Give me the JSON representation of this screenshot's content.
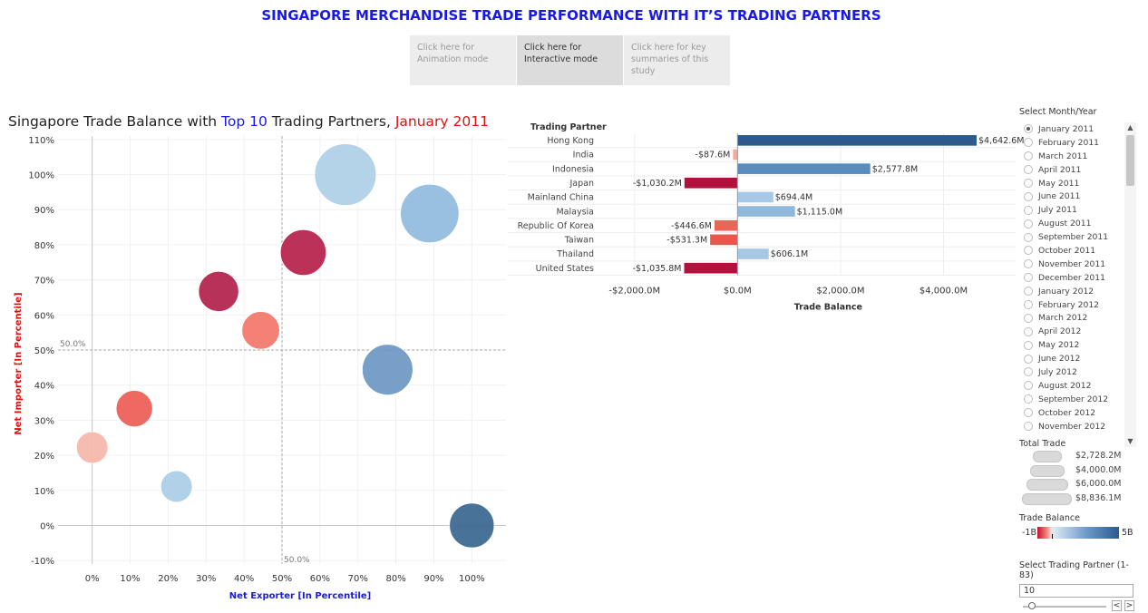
{
  "header": {
    "title": "SINGAPORE MERCHANDISE TRADE PERFORMANCE WITH IT’S TRADING PARTNERS",
    "nav": [
      {
        "label": "Click here for Animation mode",
        "active": false
      },
      {
        "label": "Click here for Interactive mode",
        "active": true
      },
      {
        "label": "Click here for key summaries of this study",
        "active": false
      }
    ]
  },
  "scatter": {
    "title_prefix": "Singapore Trade Balance with ",
    "title_top": "Top 10",
    "title_mid": " Trading Partners, ",
    "title_period": "January 2011",
    "xlabel": "Net Exporter [In Percentile]",
    "ylabel": "Net Importer [In Percentile]",
    "x_ticks": [
      "0%",
      "10%",
      "20%",
      "30%",
      "40%",
      "50%",
      "60%",
      "70%",
      "80%",
      "90%",
      "100%"
    ],
    "y_ticks": [
      "-10%",
      "0%",
      "10%",
      "20%",
      "30%",
      "40%",
      "50%",
      "60%",
      "70%",
      "80%",
      "90%",
      "100%",
      "110%"
    ],
    "ref_h_label": "50.0%",
    "ref_v_label": "50.0%"
  },
  "bar_chart": {
    "header": "Trading Partner",
    "xlabel": "Trade Balance",
    "x_ticks": [
      "-$2,000.0M",
      "$0.0M",
      "$2,000.0M",
      "$4,000.0M"
    ]
  },
  "chart_data": [
    {
      "type": "scatter",
      "title": "Singapore Trade Balance with Top 10 Trading Partners, January 2011",
      "xlabel": "Net Exporter [In Percentile]",
      "ylabel": "Net Importer [In Percentile]",
      "xlim": [
        -0.09,
        1.09
      ],
      "ylim": [
        -0.11,
        1.11
      ],
      "points": [
        {
          "x": 0.667,
          "y": 1.0,
          "size": 4000,
          "color": "#aecfe6"
        },
        {
          "x": 0.889,
          "y": 0.889,
          "size": 3600,
          "color": "#90bade"
        },
        {
          "x": 0.556,
          "y": 0.778,
          "size": 2200,
          "color": "#b5204a"
        },
        {
          "x": 0.333,
          "y": 0.667,
          "size": 1700,
          "color": "#b21f4a"
        },
        {
          "x": 0.444,
          "y": 0.556,
          "size": 1500,
          "color": "#f2766a"
        },
        {
          "x": 0.778,
          "y": 0.444,
          "size": 2700,
          "color": "#6b97c3"
        },
        {
          "x": 0.111,
          "y": 0.333,
          "size": 1400,
          "color": "#eb5c55"
        },
        {
          "x": 0.0,
          "y": 0.222,
          "size": 1050,
          "color": "#f6b6aa"
        },
        {
          "x": 0.222,
          "y": 0.111,
          "size": 1050,
          "color": "#a9cde6"
        },
        {
          "x": 1.0,
          "y": 0.0,
          "size": 2100,
          "color": "#3a6690"
        }
      ]
    },
    {
      "type": "bar",
      "orientation": "horizontal",
      "xlabel": "Trade Balance",
      "xlim": [
        -2700,
        5400
      ],
      "categories": [
        "Hong Kong",
        "India",
        "Indonesia",
        "Japan",
        "Mainland China",
        "Malaysia",
        "Republic Of Korea",
        "Taiwan",
        "Thailand",
        "United States"
      ],
      "values": [
        4642.6,
        -87.6,
        2577.8,
        -1030.2,
        694.4,
        1115.0,
        -446.6,
        -531.3,
        606.1,
        -1035.8
      ],
      "labels": [
        "$4,642.6M",
        "-$87.6M",
        "$2,577.8M",
        "-$1,030.2M",
        "$694.4M",
        "$1,115.0M",
        "-$446.6M",
        "-$531.3M",
        "$606.1M",
        "-$1,035.8M"
      ],
      "colors": [
        "#2c5a8c",
        "#f4a89e",
        "#5b8bbd",
        "#b3113d",
        "#a6c8e4",
        "#8fb8db",
        "#ec6357",
        "#e9564e",
        "#a6c8e4",
        "#b3113d"
      ]
    }
  ],
  "filters": {
    "month_label": "Select Month/Year",
    "months": [
      "January 2011",
      "February 2011",
      "March 2011",
      "April 2011",
      "May 2011",
      "June 2011",
      "July 2011",
      "August 2011",
      "September 2011",
      "October 2011",
      "November 2011",
      "December 2011",
      "January 2012",
      "February 2012",
      "March 2012",
      "April 2012",
      "May 2012",
      "June 2012",
      "July 2012",
      "August 2012",
      "September 2012",
      "October 2012",
      "November 2012"
    ],
    "selected_index": 0,
    "scroll_up": "▲",
    "scroll_down": "▼",
    "total_trade_label": "Total Trade",
    "total_trade_values": [
      "$2,728.2M",
      "$4,000.0M",
      "$6,000.0M",
      "$8,836.1M"
    ],
    "trade_balance_label": "Trade Balance",
    "trade_balance_min": "-1B",
    "trade_balance_max": "5B",
    "partner_label": "Select Trading Partner (1-83)",
    "partner_value": "10",
    "partner_slider_value": 10,
    "partner_slider_max": 83,
    "prev": "<",
    "next": ">"
  }
}
